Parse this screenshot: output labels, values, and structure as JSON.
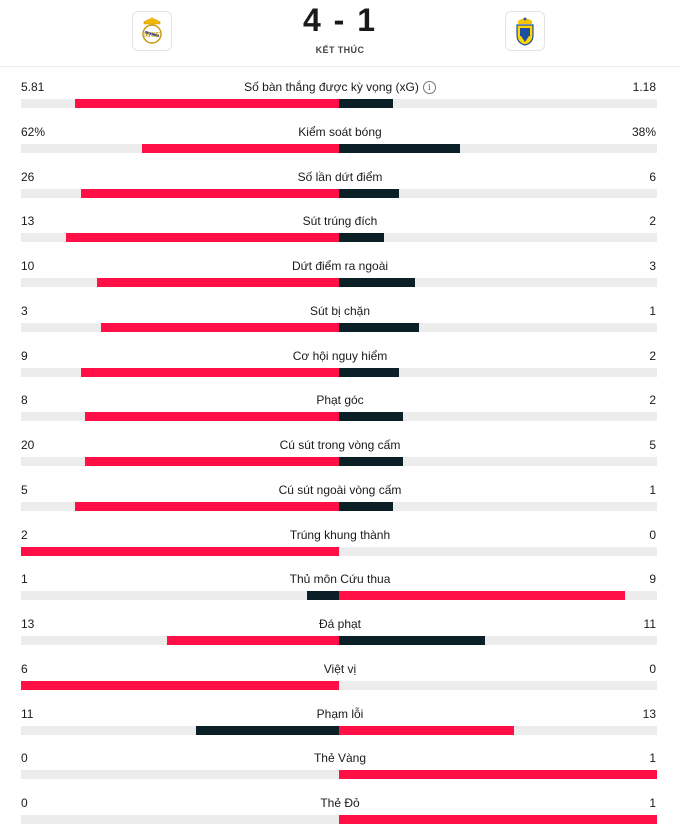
{
  "match": {
    "score": "4 - 1",
    "status": "KẾT THÚC",
    "home_crest_icon": "real-madrid-crest-icon",
    "away_crest_icon": "las-palmas-crest-icon"
  },
  "colors": {
    "winner": "#ff0f45",
    "loser": "#0b1f26",
    "track": "#ececec"
  },
  "stats": [
    {
      "label": "Số bàn thắng được kỳ vọng (xG)",
      "home": "5.81",
      "away": "1.18",
      "home_fill": 0.83,
      "away_fill": 0.17,
      "info": true
    },
    {
      "label": "Kiểm soát bóng",
      "home": "62%",
      "away": "38%",
      "home_fill": 0.62,
      "away_fill": 0.38
    },
    {
      "label": "Số lần dứt điểm",
      "home": "26",
      "away": "6",
      "home_fill": 0.81,
      "away_fill": 0.19
    },
    {
      "label": "Sút trúng đích",
      "home": "13",
      "away": "2",
      "home_fill": 0.86,
      "away_fill": 0.14
    },
    {
      "label": "Dứt điểm ra ngoài",
      "home": "10",
      "away": "3",
      "home_fill": 0.76,
      "away_fill": 0.24
    },
    {
      "label": "Sút bị chặn",
      "home": "3",
      "away": "1",
      "home_fill": 0.75,
      "away_fill": 0.25
    },
    {
      "label": "Cơ hội nguy hiểm",
      "home": "9",
      "away": "2",
      "home_fill": 0.81,
      "away_fill": 0.19
    },
    {
      "label": "Phạt góc",
      "home": "8",
      "away": "2",
      "home_fill": 0.8,
      "away_fill": 0.2
    },
    {
      "label": "Cú sút trong vòng cấm",
      "home": "20",
      "away": "5",
      "home_fill": 0.8,
      "away_fill": 0.2
    },
    {
      "label": "Cú sút ngoài vòng cấm",
      "home": "5",
      "away": "1",
      "home_fill": 0.83,
      "away_fill": 0.17
    },
    {
      "label": "Trúng khung thành",
      "home": "2",
      "away": "0",
      "home_fill": 1.0,
      "away_fill": 0.0
    },
    {
      "label": "Thủ môn Cứu thua",
      "home": "1",
      "away": "9",
      "home_fill": 0.1,
      "away_fill": 0.9
    },
    {
      "label": "Đá phạt",
      "home": "13",
      "away": "11",
      "home_fill": 0.54,
      "away_fill": 0.46
    },
    {
      "label": "Việt vị",
      "home": "6",
      "away": "0",
      "home_fill": 1.0,
      "away_fill": 0.0
    },
    {
      "label": "Phạm lỗi",
      "home": "11",
      "away": "13",
      "home_fill": 0.45,
      "away_fill": 0.55
    },
    {
      "label": "Thẻ Vàng",
      "home": "0",
      "away": "1",
      "home_fill": 0.0,
      "away_fill": 1.0
    },
    {
      "label": "Thẻ Đỏ",
      "home": "0",
      "away": "1",
      "home_fill": 0.0,
      "away_fill": 1.0
    }
  ]
}
